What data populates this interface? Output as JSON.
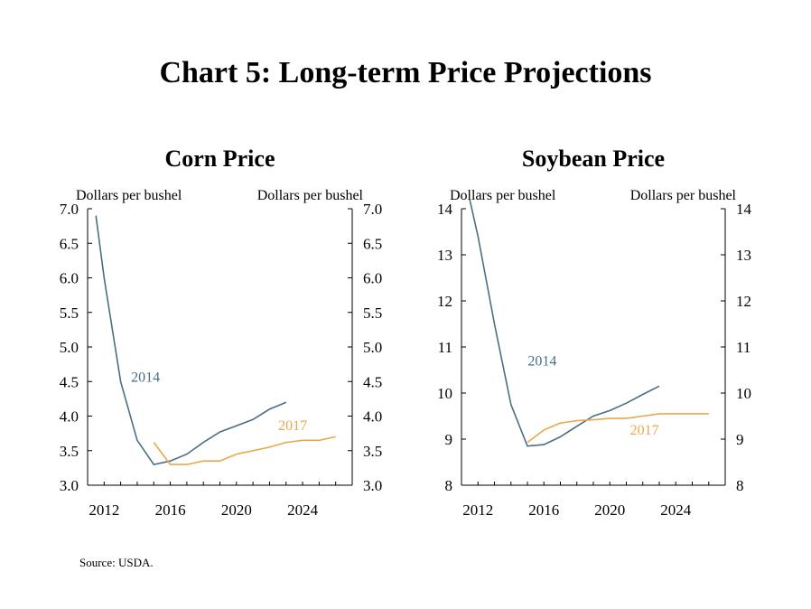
{
  "page": {
    "title": "Chart 5: Long-term Price Projections",
    "source": "Source: USDA."
  },
  "colors": {
    "series_2014": "#4a6f82",
    "series_2017": "#e8a94a",
    "axis": "#000000"
  },
  "chart_data": [
    {
      "type": "line",
      "title": "Corn Price",
      "ylabel_left": "Dollars per bushel",
      "ylabel_right": "Dollars per bushel",
      "xlim": [
        2011,
        2027
      ],
      "ylim": [
        3.0,
        7.0
      ],
      "yticks": [
        "3.0",
        "3.5",
        "4.0",
        "4.5",
        "5.0",
        "5.5",
        "6.0",
        "6.5",
        "7.0"
      ],
      "xticks": [
        "2012",
        "2016",
        "2020",
        "2024"
      ],
      "grid": false,
      "series": [
        {
          "name": "2014",
          "color_key": "series_2014",
          "x": [
            2011.5,
            2012,
            2013,
            2014,
            2015,
            2016,
            2017,
            2018,
            2019,
            2020,
            2021,
            2022,
            2023
          ],
          "y": [
            6.9,
            6.0,
            4.5,
            3.65,
            3.3,
            3.35,
            3.45,
            3.62,
            3.77,
            3.86,
            3.95,
            4.1,
            4.2
          ],
          "label_at": [
            2014.5,
            4.5
          ]
        },
        {
          "name": "2017",
          "color_key": "series_2017",
          "x": [
            2015,
            2016,
            2017,
            2018,
            2019,
            2020,
            2021,
            2022,
            2023,
            2024,
            2025,
            2026
          ],
          "y": [
            3.62,
            3.3,
            3.3,
            3.35,
            3.35,
            3.45,
            3.5,
            3.55,
            3.62,
            3.65,
            3.65,
            3.7
          ],
          "label_at": [
            2023.4,
            3.8
          ]
        }
      ]
    },
    {
      "type": "line",
      "title": "Soybean Price",
      "ylabel_left": "Dollars per bushel",
      "ylabel_right": "Dollars per bushel",
      "xlim": [
        2011,
        2027
      ],
      "ylim": [
        8,
        14
      ],
      "yticks": [
        "8",
        "9",
        "10",
        "11",
        "12",
        "13",
        "14"
      ],
      "xticks": [
        "2012",
        "2016",
        "2020",
        "2024"
      ],
      "grid": false,
      "series": [
        {
          "name": "2014",
          "color_key": "series_2014",
          "x": [
            2011.5,
            2012,
            2013,
            2014,
            2015,
            2016,
            2017,
            2018,
            2019,
            2020,
            2021,
            2022,
            2023
          ],
          "y": [
            14.2,
            13.4,
            11.5,
            9.75,
            8.85,
            8.88,
            9.05,
            9.28,
            9.5,
            9.62,
            9.78,
            9.97,
            10.15
          ],
          "label_at": [
            2015.9,
            10.6
          ]
        },
        {
          "name": "2017",
          "color_key": "series_2017",
          "x": [
            2015,
            2016,
            2017,
            2018,
            2019,
            2020,
            2021,
            2022,
            2023,
            2024,
            2025,
            2026
          ],
          "y": [
            8.93,
            9.2,
            9.35,
            9.4,
            9.42,
            9.45,
            9.45,
            9.5,
            9.55,
            9.55,
            9.55,
            9.55
          ],
          "label_at": [
            2022.1,
            9.1
          ]
        }
      ]
    }
  ]
}
